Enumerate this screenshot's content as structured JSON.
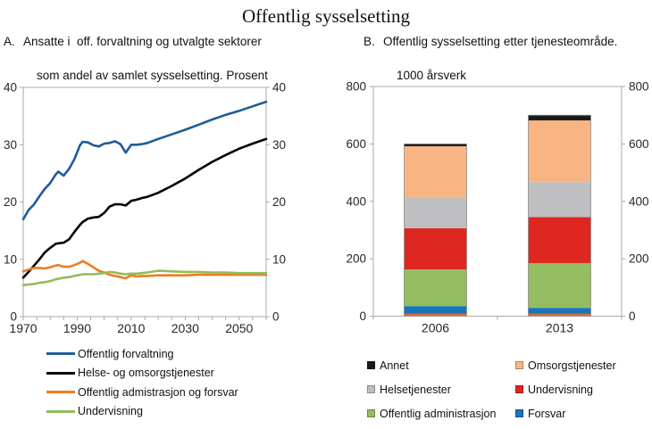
{
  "title": "Offentlig sysselsetting",
  "panel_a": {
    "label": "A.",
    "title_line1": "Ansatte i  off. forvaltning og utvalgte sektorer",
    "title_line2": "som andel av samlet sysselsetting. Prosent"
  },
  "panel_b": {
    "label": "B.",
    "title_line1": "Offentlig sysselsetting etter tjenesteområde.",
    "title_line2": "1000 årsverk"
  },
  "chart_data": [
    {
      "id": "A",
      "type": "line",
      "title": "Ansatte i off. forvaltning og utvalgte sektorer som andel av samlet sysselsetting. Prosent",
      "x_range": [
        1970,
        2060
      ],
      "y_range": [
        0,
        40
      ],
      "x_ticks_labeled": [
        1970,
        1990,
        2010,
        2030,
        2050
      ],
      "x_minor_tick_step": 5,
      "y_ticks": [
        0,
        10,
        20,
        30,
        40
      ],
      "y_axis_sides": "both",
      "grid": false,
      "axis_color": "#a9a9a9",
      "legend_position": "below",
      "series": [
        {
          "name": "Offentlig forvaltning",
          "color": "#1f5c99",
          "x": [
            1970,
            1972,
            1974,
            1976,
            1978,
            1980,
            1982,
            1983,
            1985,
            1987,
            1989,
            1991,
            1992,
            1994,
            1996,
            1998,
            2000,
            2002,
            2004,
            2006,
            2008,
            2010,
            2012,
            2014,
            2016,
            2020,
            2025,
            2030,
            2035,
            2040,
            2045,
            2050,
            2055,
            2060
          ],
          "y": [
            17.0,
            18.6,
            19.6,
            21.0,
            22.3,
            23.3,
            24.8,
            25.3,
            24.6,
            25.8,
            27.5,
            29.9,
            30.5,
            30.4,
            29.9,
            29.7,
            30.2,
            30.3,
            30.6,
            30.1,
            28.6,
            30.0,
            30.0,
            30.1,
            30.3,
            31.0,
            31.8,
            32.6,
            33.5,
            34.4,
            35.2,
            35.9,
            36.7,
            37.5
          ]
        },
        {
          "name": "Helse- og omsorgstjenester",
          "color": "#000000",
          "x": [
            1970,
            1972,
            1974,
            1976,
            1978,
            1980,
            1982,
            1983,
            1985,
            1987,
            1989,
            1991,
            1992,
            1994,
            1996,
            1998,
            2000,
            2002,
            2004,
            2006,
            2008,
            2010,
            2012,
            2014,
            2016,
            2020,
            2025,
            2030,
            2035,
            2040,
            2045,
            2050,
            2055,
            2060
          ],
          "y": [
            6.8,
            7.8,
            8.9,
            10.0,
            11.2,
            12.0,
            12.7,
            12.8,
            12.9,
            13.5,
            14.8,
            16.0,
            16.5,
            17.1,
            17.3,
            17.4,
            18.1,
            19.2,
            19.6,
            19.6,
            19.4,
            20.2,
            20.4,
            20.7,
            20.9,
            21.6,
            22.8,
            24.1,
            25.6,
            27.0,
            28.2,
            29.3,
            30.2,
            31.0
          ]
        },
        {
          "name": "Offentlig admistrasjon og forsvar",
          "color": "#ef7d23",
          "x": [
            1970,
            1972,
            1974,
            1976,
            1978,
            1980,
            1982,
            1983,
            1985,
            1987,
            1989,
            1991,
            1992,
            1994,
            1996,
            1998,
            2000,
            2002,
            2004,
            2006,
            2008,
            2010,
            2012,
            2014,
            2016,
            2020,
            2025,
            2030,
            2035,
            2040,
            2045,
            2050,
            2055,
            2060
          ],
          "y": [
            7.9,
            8.2,
            8.5,
            8.5,
            8.4,
            8.6,
            8.9,
            9.0,
            8.7,
            8.7,
            9.0,
            9.4,
            9.7,
            9.2,
            8.6,
            8.0,
            7.7,
            7.3,
            7.1,
            6.9,
            6.7,
            7.2,
            7.0,
            7.1,
            7.1,
            7.2,
            7.2,
            7.2,
            7.3,
            7.3,
            7.3,
            7.3,
            7.3,
            7.3
          ]
        },
        {
          "name": "Undervisning",
          "color": "#8fbe58",
          "x": [
            1970,
            1972,
            1974,
            1976,
            1978,
            1980,
            1982,
            1983,
            1985,
            1987,
            1989,
            1991,
            1992,
            1994,
            1996,
            1998,
            2000,
            2002,
            2004,
            2006,
            2008,
            2010,
            2012,
            2014,
            2016,
            2020,
            2025,
            2030,
            2035,
            2040,
            2045,
            2050,
            2055,
            2060
          ],
          "y": [
            5.5,
            5.6,
            5.7,
            5.9,
            6.0,
            6.2,
            6.5,
            6.6,
            6.8,
            6.9,
            7.1,
            7.3,
            7.4,
            7.4,
            7.4,
            7.5,
            7.6,
            7.8,
            7.7,
            7.5,
            7.4,
            7.5,
            7.5,
            7.6,
            7.7,
            8.0,
            7.9,
            7.8,
            7.8,
            7.7,
            7.7,
            7.6,
            7.6,
            7.6
          ]
        }
      ]
    },
    {
      "id": "B",
      "type": "stacked-bar",
      "title": "Offentlig sysselsetting etter tjenesteområde. 1000 årsverk",
      "categories": [
        "2006",
        "2013"
      ],
      "y_range": [
        0,
        800
      ],
      "y_ticks": [
        0,
        200,
        400,
        600,
        800
      ],
      "y_axis_sides": "both",
      "grid": false,
      "axis_color": "#a9a9a9",
      "bar_outline_color": "#8c8c8c",
      "totals": [
        600,
        700
      ],
      "series": [
        {
          "name": "",
          "color": "#e0702d",
          "values": [
            8,
            8
          ],
          "in_legend": false
        },
        {
          "name": "Forsvar",
          "color": "#1874bd",
          "values": [
            27,
            21
          ]
        },
        {
          "name": "Offentlig administrasjon",
          "color": "#94bd60",
          "values": [
            128,
            156
          ]
        },
        {
          "name": "Undervisning",
          "color": "#de2721",
          "values": [
            143,
            160
          ]
        },
        {
          "name": "Helsetjenester",
          "color": "#bfbfc2",
          "values": [
            109,
            122
          ]
        },
        {
          "name": "Omsorgstjenester",
          "color": "#f8b583",
          "values": [
            177,
            215
          ]
        },
        {
          "name": "Annet",
          "color": "#1a1a1a",
          "values": [
            8,
            18
          ]
        }
      ],
      "legend_columns": [
        [
          "Annet",
          "Helsetjenester",
          "Offentlig administrasjon"
        ],
        [
          "Omsorgstjenester",
          "Undervisning",
          "Forsvar"
        ]
      ],
      "legend_position": "below"
    }
  ]
}
